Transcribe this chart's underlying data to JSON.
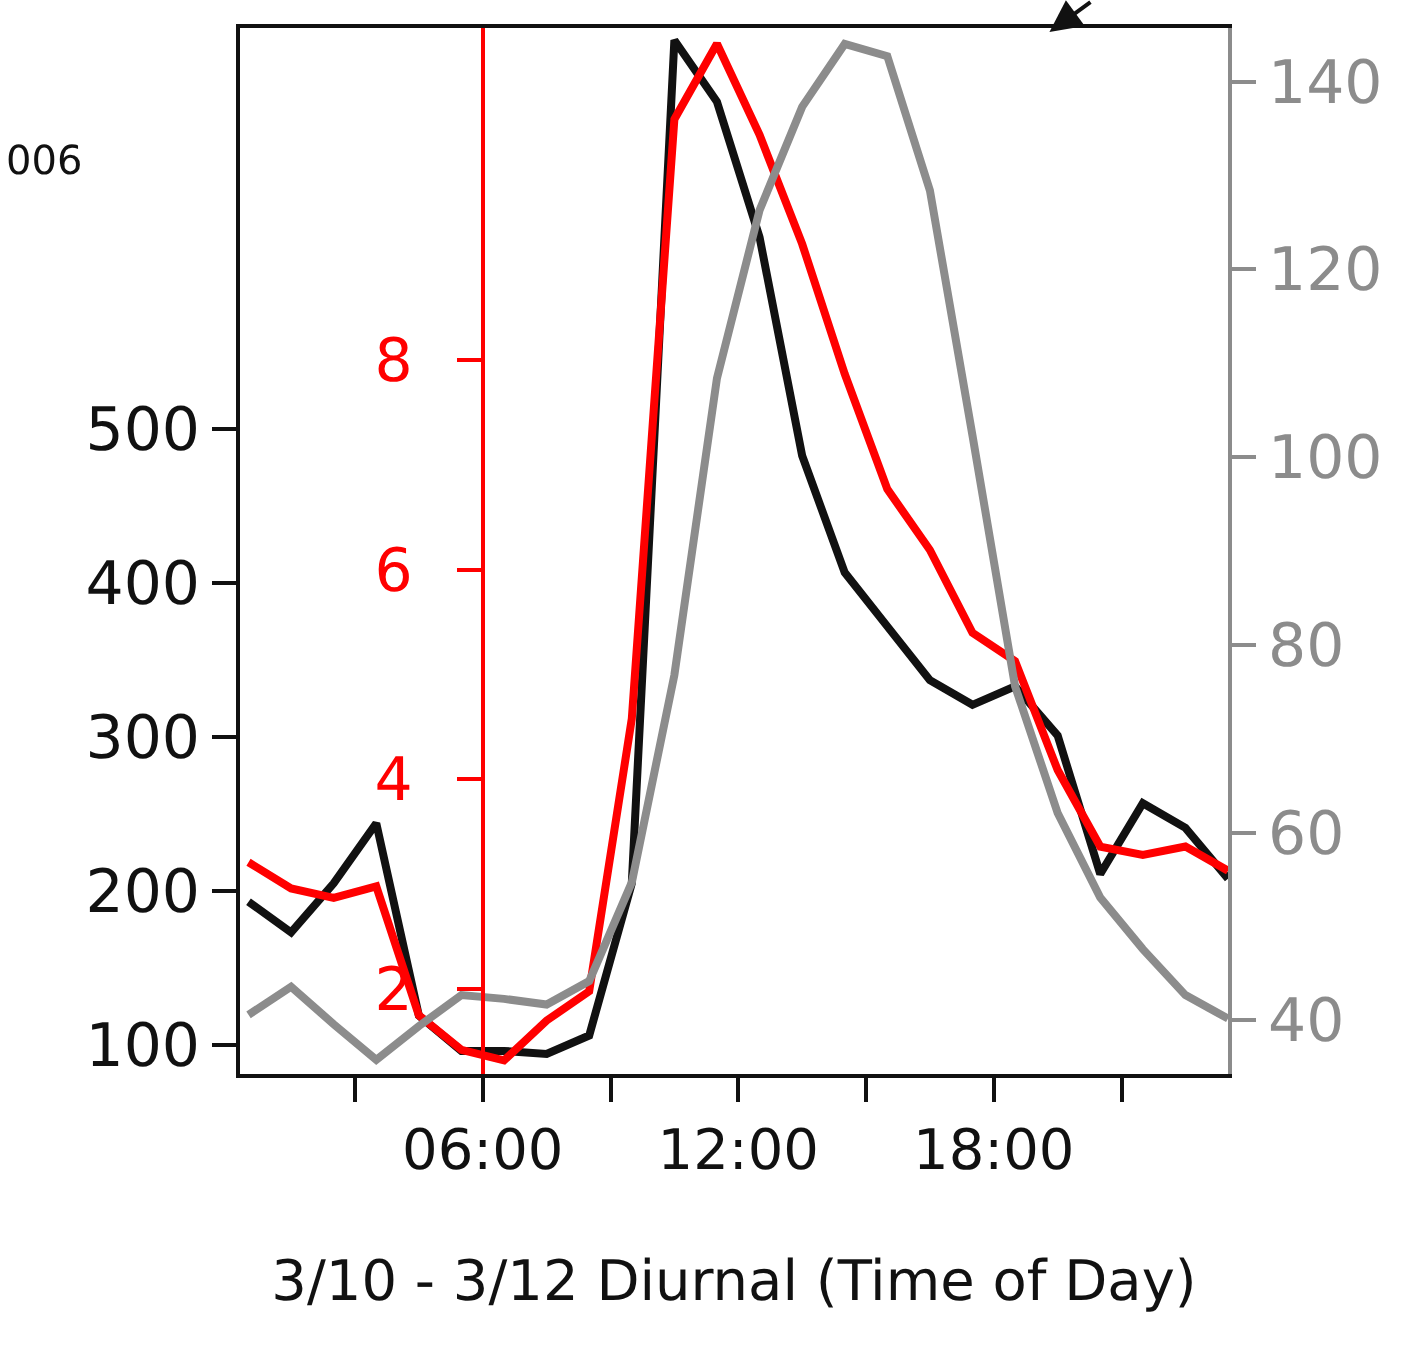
{
  "chart_data": {
    "type": "line",
    "xlabel": "3/10 - 3/12 Diurnal (Time of Day)",
    "x": [
      0.5,
      1.5,
      2.5,
      3.5,
      4.5,
      5.5,
      6.5,
      7.5,
      8.5,
      9.5,
      10.5,
      11.5,
      12.5,
      13.5,
      14.5,
      15.5,
      16.5,
      17.5,
      18.5,
      19.5,
      20.5,
      21.5,
      22.5,
      23.5
    ],
    "xlim": [
      0.3,
      23.5
    ],
    "xticks": [
      {
        "value": 3,
        "label": null
      },
      {
        "value": 6,
        "label": "06:00"
      },
      {
        "value": 9,
        "label": null
      },
      {
        "value": 12,
        "label": "12:00"
      },
      {
        "value": 15,
        "label": null
      },
      {
        "value": 18,
        "label": "18:00"
      },
      {
        "value": 21,
        "label": null
      }
    ],
    "ylim": [
      81,
      761
    ],
    "yticks": [
      100,
      200,
      300,
      400,
      500
    ],
    "y2lim": [
      1.19,
      11.17
    ],
    "y2ticks": [
      2,
      4,
      6,
      8
    ],
    "y3lim": [
      34.3,
      145.7
    ],
    "y3ticks": [
      40,
      60,
      80,
      100,
      120,
      140
    ],
    "series": [
      {
        "color": "#111111",
        "axis": "y",
        "values": [
          193,
          173,
          205,
          244,
          119,
          96,
          96,
          94,
          106,
          205,
          753,
          713,
          625,
          483,
          407,
          372,
          337,
          321,
          333,
          301,
          211,
          257,
          241,
          208
        ]
      },
      {
        "color": "#ff0000",
        "axis": "y2",
        "values": [
          3.21,
          2.96,
          2.87,
          2.98,
          1.75,
          1.42,
          1.32,
          1.7,
          1.98,
          4.58,
          10.3,
          11.02,
          10.15,
          9.11,
          7.87,
          6.77,
          6.19,
          5.4,
          5.13,
          4.09,
          3.36,
          3.28,
          3.36,
          3.13
        ]
      },
      {
        "color": "#8c8c8c",
        "axis": "y3",
        "values": [
          40.6,
          43.6,
          39.6,
          35.8,
          39.4,
          42.7,
          42.3,
          41.7,
          44.2,
          54.7,
          76.8,
          108.4,
          126.3,
          137.3,
          144.0,
          142.7,
          128.4,
          102.3,
          75.6,
          62.1,
          53.1,
          47.6,
          42.7,
          40.2
        ]
      }
    ],
    "annotations": [
      "006"
    ],
    "marker": "none",
    "line_style": "solid"
  }
}
